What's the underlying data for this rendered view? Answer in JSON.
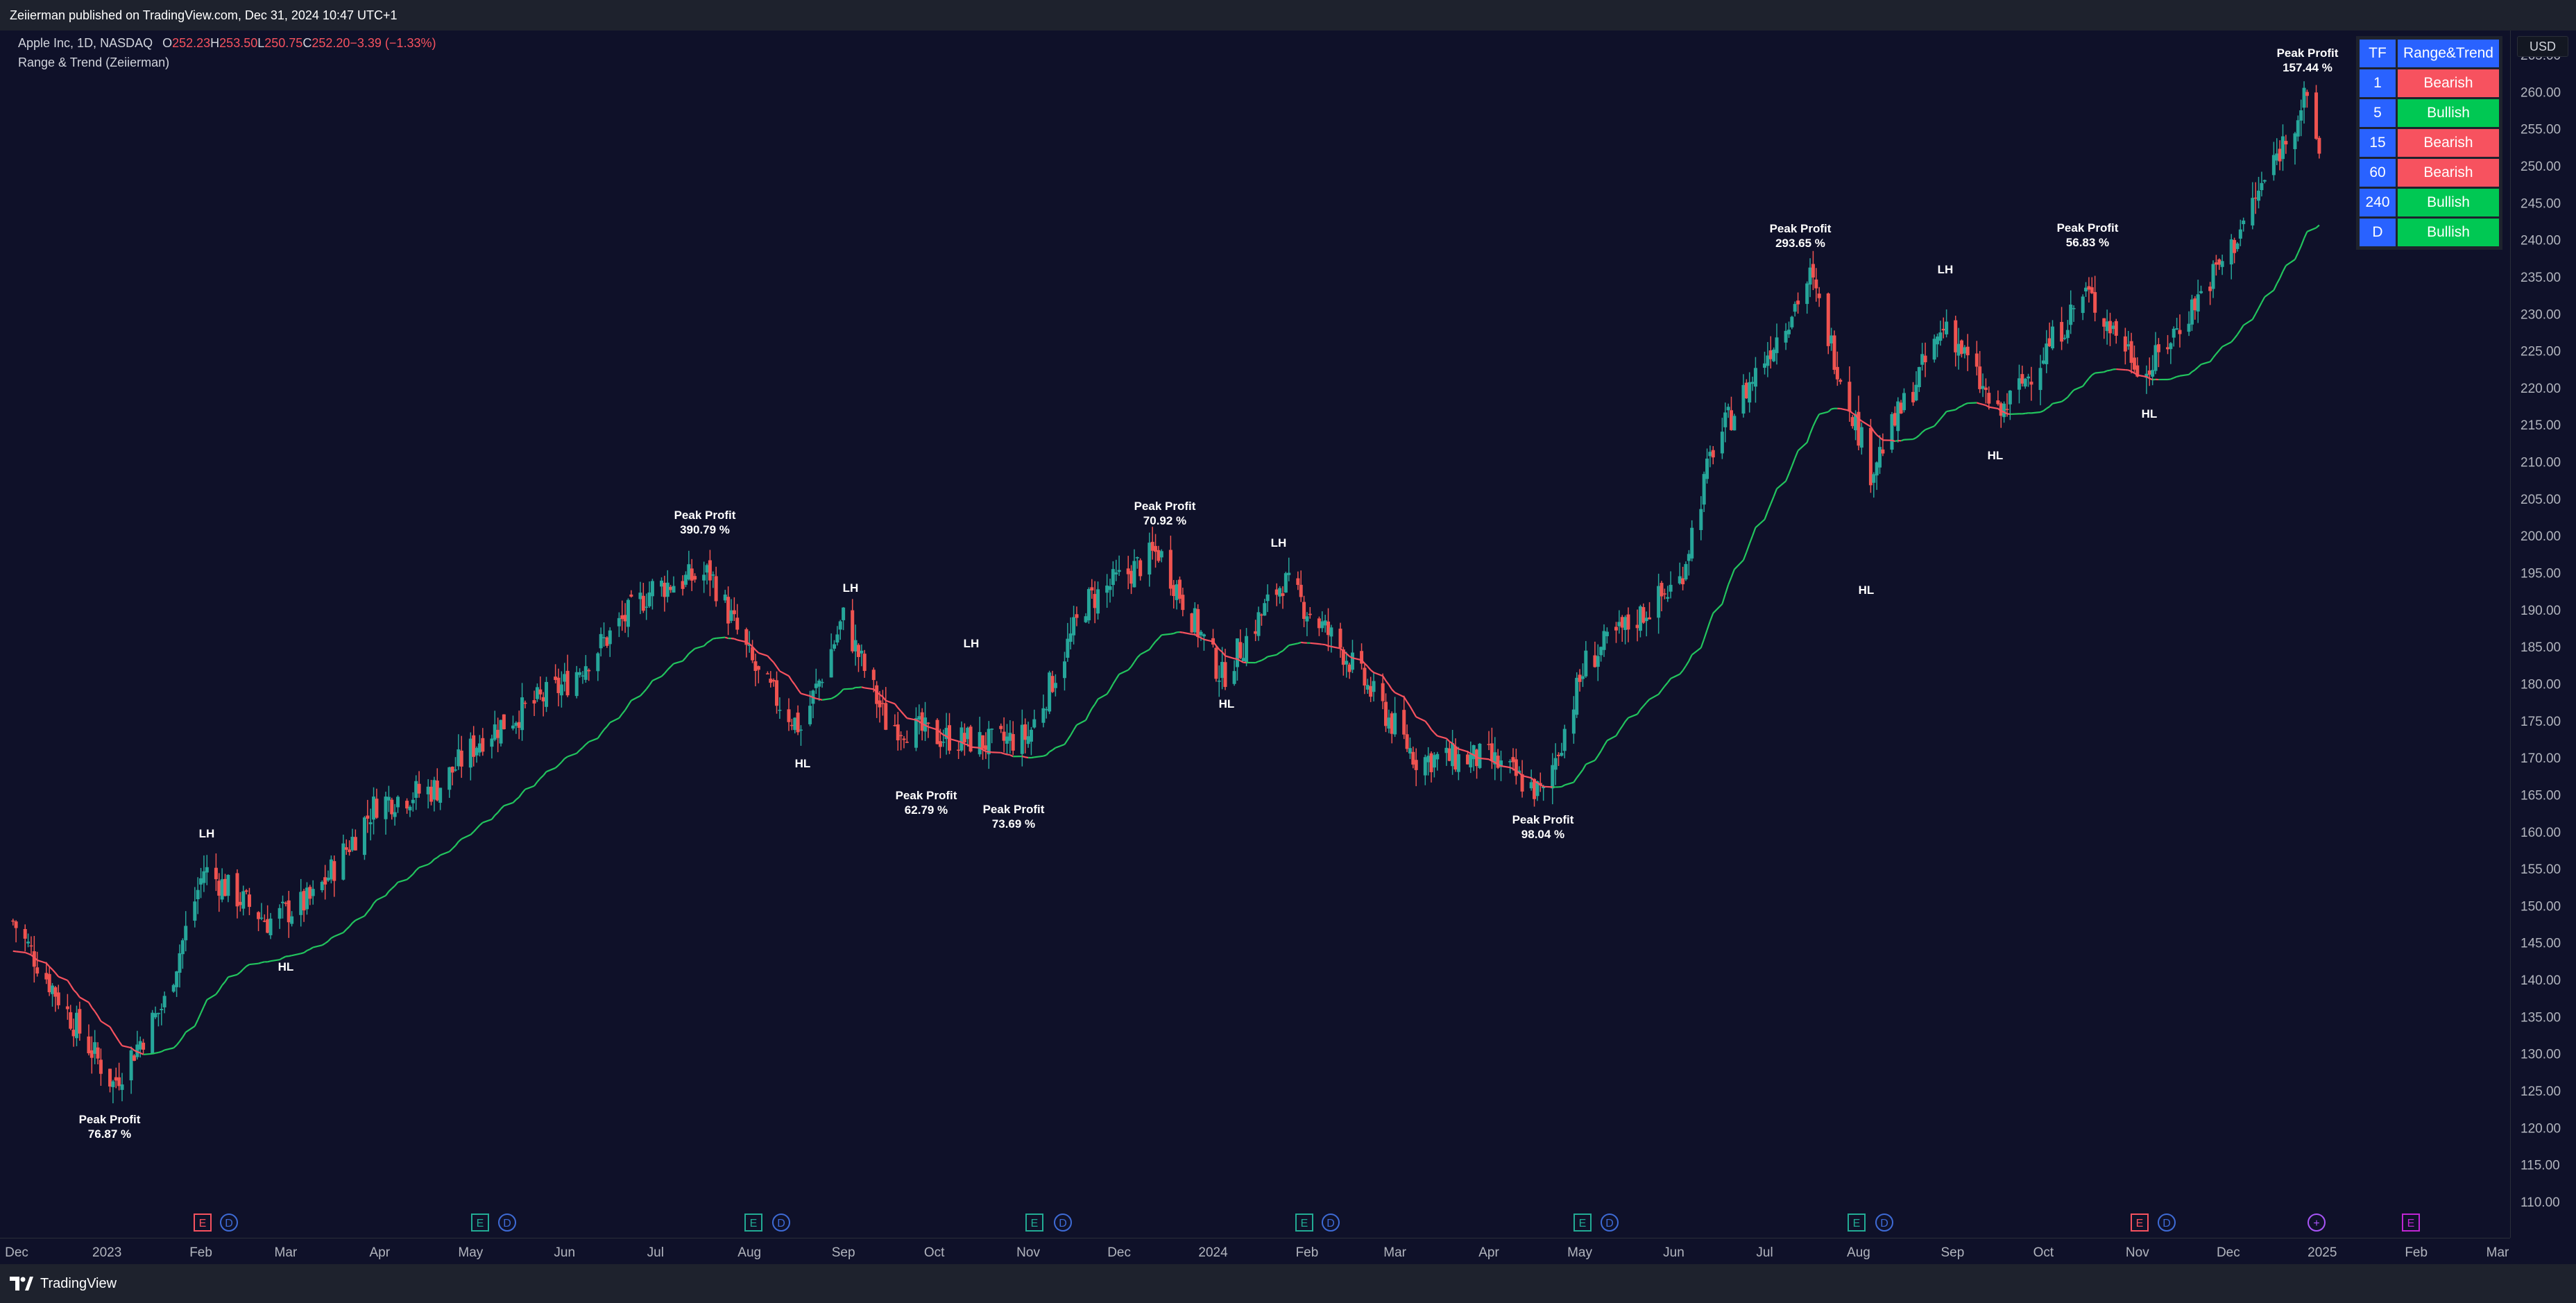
{
  "header": {
    "publish_info": "Zeiierman published on TradingView.com, Dec 31, 2024 10:47 UTC+1"
  },
  "legend": {
    "symbol": "Apple Inc, 1D, NASDAQ",
    "ohlc": [
      {
        "key": "O",
        "value": "252.23"
      },
      {
        "key": "H",
        "value": "253.50"
      },
      {
        "key": "L",
        "value": "250.75"
      },
      {
        "key": "C",
        "value": "252.20"
      }
    ],
    "change": "−3.39 (−1.33%)",
    "indicator": "Range & Trend (Zeiierman)"
  },
  "price_axis": {
    "currency": "USD",
    "ticks": [
      "265.00",
      "260.00",
      "255.00",
      "250.00",
      "245.00",
      "240.00",
      "235.00",
      "230.00",
      "225.00",
      "220.00",
      "215.00",
      "210.00",
      "205.00",
      "200.00",
      "195.00",
      "190.00",
      "185.00",
      "180.00",
      "175.00",
      "170.00",
      "165.00",
      "160.00",
      "155.00",
      "150.00",
      "145.00",
      "140.00",
      "135.00",
      "130.00",
      "125.00",
      "120.00",
      "115.00",
      "110.00"
    ]
  },
  "time_axis": {
    "labels": [
      "Dec",
      "2023",
      "Feb",
      "Mar",
      "Apr",
      "May",
      "Jun",
      "Jul",
      "Aug",
      "Sep",
      "Oct",
      "Nov",
      "Dec",
      "2024",
      "Feb",
      "Mar",
      "Apr",
      "May",
      "Jun",
      "Jul",
      "Aug",
      "Sep",
      "Oct",
      "Nov",
      "Dec",
      "2025",
      "Feb",
      "Mar"
    ]
  },
  "trend_table": {
    "header": {
      "tf": "TF",
      "trend": "Range&Trend"
    },
    "rows": [
      {
        "tf": "1",
        "trend": "Bearish",
        "state": "bear"
      },
      {
        "tf": "5",
        "trend": "Bullish",
        "state": "bull"
      },
      {
        "tf": "15",
        "trend": "Bearish",
        "state": "bear"
      },
      {
        "tf": "60",
        "trend": "Bearish",
        "state": "bear"
      },
      {
        "tf": "240",
        "trend": "Bullish",
        "state": "bull"
      },
      {
        "tf": "D",
        "trend": "Bullish",
        "state": "bull"
      }
    ]
  },
  "annotations": [
    {
      "text": "Peak Profit",
      "value": "76.87 %"
    },
    {
      "text": "LH"
    },
    {
      "text": "HL"
    },
    {
      "text": "Peak Profit",
      "value": "390.79 %"
    },
    {
      "text": "LH"
    },
    {
      "text": "HL"
    },
    {
      "text": "LH"
    },
    {
      "text": "Peak Profit",
      "value": "62.79 %"
    },
    {
      "text": "Peak Profit",
      "value": "73.69 %"
    },
    {
      "text": "Peak Profit",
      "value": "70.92 %"
    },
    {
      "text": "LH"
    },
    {
      "text": "HL"
    },
    {
      "text": "Peak Profit",
      "value": "98.04 %"
    },
    {
      "text": "Peak Profit",
      "value": "293.65 %"
    },
    {
      "text": "LH"
    },
    {
      "text": "HL"
    },
    {
      "text": "HL"
    },
    {
      "text": "Peak Profit",
      "value": "56.83 %"
    },
    {
      "text": "HL"
    },
    {
      "text": "Peak Profit",
      "value": "157.44 %"
    }
  ],
  "event_markers": [
    "E",
    "D",
    "E",
    "D",
    "E",
    "D",
    "E",
    "D",
    "E",
    "D",
    "E",
    "D",
    "E",
    "D",
    "E",
    "D",
    "+",
    "E"
  ],
  "chart_data": {
    "type": "candlestick-with-trend-line",
    "symbol": "AAPL",
    "interval": "1D",
    "ylim": [
      105,
      267
    ],
    "close_approx": [
      {
        "date": "2022-12-01",
        "close": 148
      },
      {
        "date": "2022-12-20",
        "close": 135
      },
      {
        "date": "2023-01-03",
        "close": 126
      },
      {
        "date": "2023-01-20",
        "close": 137
      },
      {
        "date": "2023-02-02",
        "close": 155
      },
      {
        "date": "2023-02-23",
        "close": 148
      },
      {
        "date": "2023-03-10",
        "close": 151
      },
      {
        "date": "2023-03-31",
        "close": 164
      },
      {
        "date": "2023-04-20",
        "close": 166
      },
      {
        "date": "2023-05-05",
        "close": 173
      },
      {
        "date": "2023-06-01",
        "close": 180
      },
      {
        "date": "2023-06-30",
        "close": 193
      },
      {
        "date": "2023-07-19",
        "close": 195
      },
      {
        "date": "2023-08-04",
        "close": 181
      },
      {
        "date": "2023-08-18",
        "close": 174
      },
      {
        "date": "2023-09-01",
        "close": 189
      },
      {
        "date": "2023-09-15",
        "close": 175
      },
      {
        "date": "2023-10-02",
        "close": 173
      },
      {
        "date": "2023-10-20",
        "close": 172
      },
      {
        "date": "2023-11-01",
        "close": 173
      },
      {
        "date": "2023-11-20",
        "close": 191
      },
      {
        "date": "2023-12-14",
        "close": 198
      },
      {
        "date": "2024-01-04",
        "close": 181
      },
      {
        "date": "2024-01-24",
        "close": 194
      },
      {
        "date": "2024-02-12",
        "close": 185
      },
      {
        "date": "2024-03-08",
        "close": 170
      },
      {
        "date": "2024-04-01",
        "close": 170
      },
      {
        "date": "2024-04-19",
        "close": 165
      },
      {
        "date": "2024-05-03",
        "close": 183
      },
      {
        "date": "2024-06-03",
        "close": 194
      },
      {
        "date": "2024-06-14",
        "close": 212
      },
      {
        "date": "2024-07-16",
        "close": 235
      },
      {
        "date": "2024-08-05",
        "close": 209
      },
      {
        "date": "2024-08-30",
        "close": 229
      },
      {
        "date": "2024-09-16",
        "close": 216
      },
      {
        "date": "2024-10-15",
        "close": 233
      },
      {
        "date": "2024-11-04",
        "close": 222
      },
      {
        "date": "2024-12-02",
        "close": 239
      },
      {
        "date": "2024-12-26",
        "close": 259
      },
      {
        "date": "2024-12-31",
        "close": 252.2
      }
    ]
  },
  "colors": {
    "bull": "#26a69a",
    "bear": "#ef5350",
    "trend_bull": "#22c55e",
    "trend_bear": "#f7525f",
    "background": "#0f1129"
  },
  "footer": {
    "brand": "TradingView"
  }
}
